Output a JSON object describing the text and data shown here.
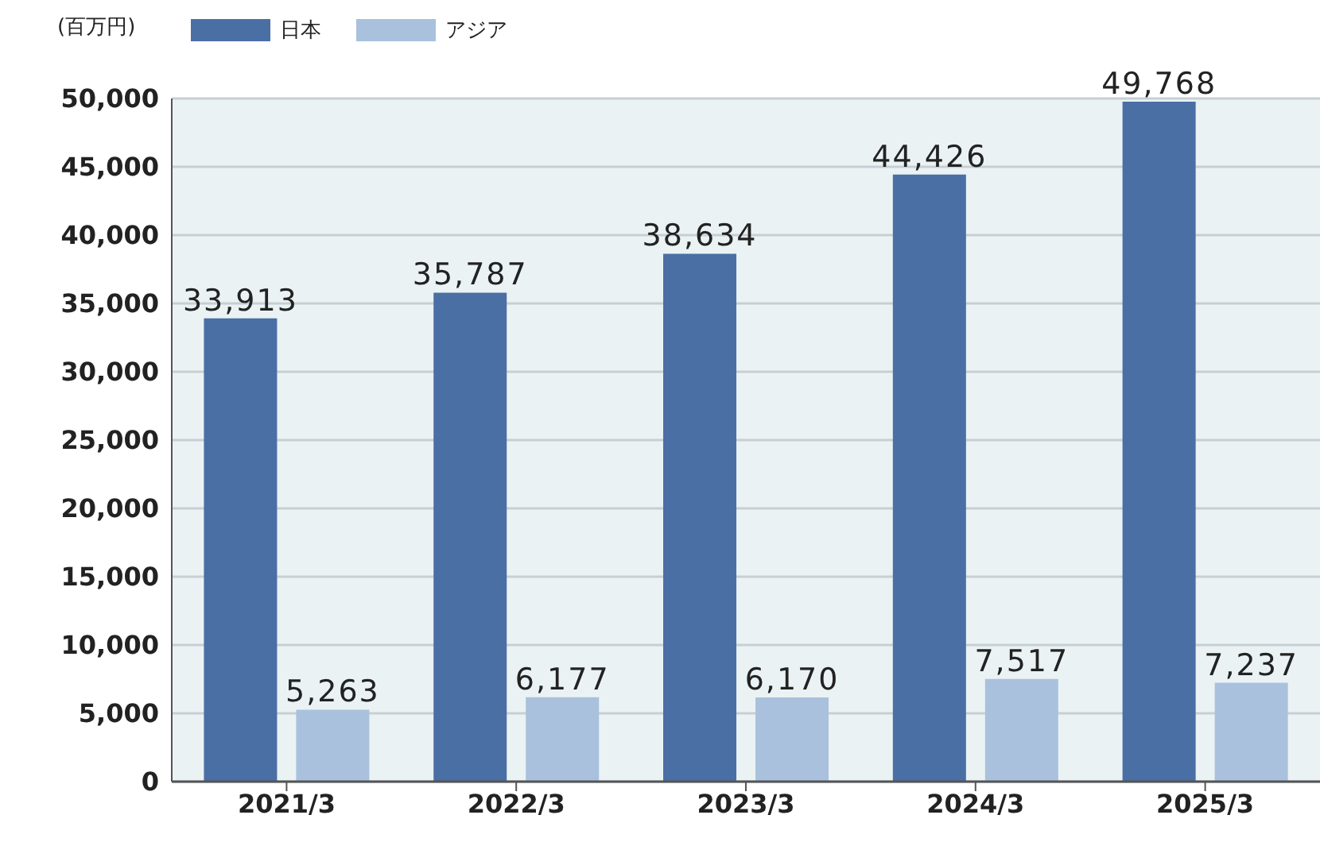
{
  "chart_data": {
    "type": "bar",
    "ylabel": "(百万円)",
    "categories": [
      "2021/3",
      "2022/3",
      "2023/3",
      "2024/3",
      "2025/3"
    ],
    "series": [
      {
        "name": "日本",
        "color": "#4a6fa5",
        "values": [
          33913,
          35787,
          38634,
          44426,
          49768
        ],
        "value_labels": [
          "33,913",
          "35,787",
          "38,634",
          "44,426",
          "49,768"
        ]
      },
      {
        "name": "アジア",
        "color": "#a9c1dc",
        "values": [
          5263,
          6177,
          6170,
          7517,
          7237
        ],
        "value_labels": [
          "5,263",
          "6,177",
          "6,170",
          "7,517",
          "7,237"
        ]
      }
    ],
    "ylim": [
      0,
      50000
    ],
    "yticks": [
      0,
      {
        "value": 5000,
        "label": "5,000"
      },
      {
        "value": 10000,
        "label": "10,000"
      },
      {
        "value": 15000,
        "label": "15,000"
      },
      {
        "value": 20000,
        "label": "20,000"
      },
      {
        "value": 25000,
        "label": "25,000"
      },
      {
        "value": 30000,
        "label": "30,000"
      },
      {
        "value": 35000,
        "label": "35,000"
      },
      {
        "value": 40000,
        "label": "40,000"
      },
      {
        "value": 45000,
        "label": "45,000"
      },
      {
        "value": 50000,
        "label": "50,000"
      }
    ],
    "grid": "y",
    "legend": "top left"
  }
}
